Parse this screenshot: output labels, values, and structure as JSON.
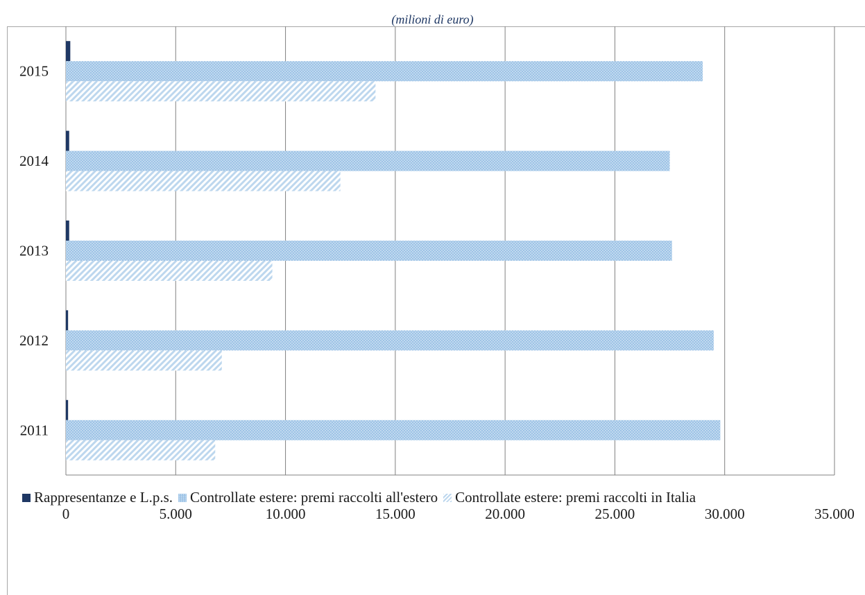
{
  "subtitle": "(milioni di euro)",
  "colors": {
    "rappresentanze": "#1f3864",
    "estero": "#9dc3e6",
    "italia": "#bdd7ee",
    "grid": "#808080"
  },
  "chart_data": {
    "type": "bar",
    "orientation": "horizontal",
    "title": "",
    "subtitle": "(milioni di euro)",
    "categories": [
      "2011",
      "2012",
      "2013",
      "2014",
      "2015"
    ],
    "series": [
      {
        "name": "Rappresentanze e L.p.s.",
        "values": [
          100,
          100,
          150,
          150,
          200
        ]
      },
      {
        "name": "Controllate estere: premi raccolti all'estero",
        "values": [
          29800,
          29500,
          27600,
          27500,
          29000
        ]
      },
      {
        "name": "Controllate estere: premi raccolti in Italia",
        "values": [
          6800,
          7100,
          9400,
          12500,
          14100
        ]
      }
    ],
    "xlim": [
      0,
      35000
    ],
    "xticks": [
      0,
      5000,
      10000,
      15000,
      20000,
      25000,
      30000,
      35000
    ],
    "xtick_labels": [
      "0",
      "5.000",
      "10.000",
      "15.000",
      "20.000",
      "25.000",
      "30.000",
      "35.000"
    ],
    "grid": true,
    "legend_position": "bottom"
  },
  "legend": [
    {
      "label": "Rappresentanze e L.p.s."
    },
    {
      "label": "Controllate estere: premi raccolti all'estero"
    },
    {
      "label": "Controllate estere: premi raccolti in Italia"
    }
  ]
}
